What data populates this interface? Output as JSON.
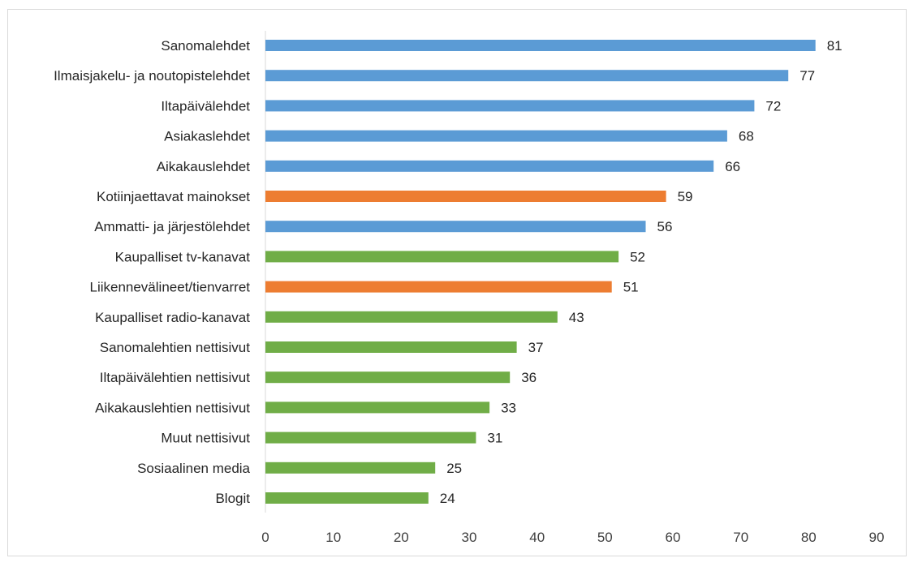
{
  "chart_data": {
    "type": "bar",
    "orientation": "horizontal",
    "title": "",
    "xlabel": "",
    "ylabel": "",
    "xlim": [
      0,
      90
    ],
    "xticks": [
      0,
      10,
      20,
      30,
      40,
      50,
      60,
      70,
      80,
      90
    ],
    "grid": false,
    "legend": "none",
    "categories": [
      "Sanomalehdet",
      "Ilmaisjakelu- ja noutopistelehdet",
      "Iltapäivälehdet",
      "Asiakaslehdet",
      "Aikakauslehdet",
      "Kotiinjaettavat mainokset",
      "Ammatti- ja järjestölehdet",
      "Kaupalliset tv-kanavat",
      "Liikennevälineet/tienvarret",
      "Kaupalliset radio-kanavat",
      "Sanomalehtien nettisivut",
      "Iltapäivälehtien nettisivut",
      "Aikakauslehtien nettisivut",
      "Muut nettisivut",
      "Sosiaalinen media",
      "Blogit"
    ],
    "values": [
      81,
      77,
      72,
      68,
      66,
      59,
      56,
      52,
      51,
      43,
      37,
      36,
      33,
      31,
      25,
      24
    ],
    "groups": [
      "blue",
      "blue",
      "blue",
      "blue",
      "blue",
      "orange",
      "blue",
      "green",
      "orange",
      "green",
      "green",
      "green",
      "green",
      "green",
      "green",
      "green"
    ],
    "colors": {
      "blue": "#5b9bd5",
      "orange": "#ed7d31",
      "green": "#70ad47"
    }
  }
}
